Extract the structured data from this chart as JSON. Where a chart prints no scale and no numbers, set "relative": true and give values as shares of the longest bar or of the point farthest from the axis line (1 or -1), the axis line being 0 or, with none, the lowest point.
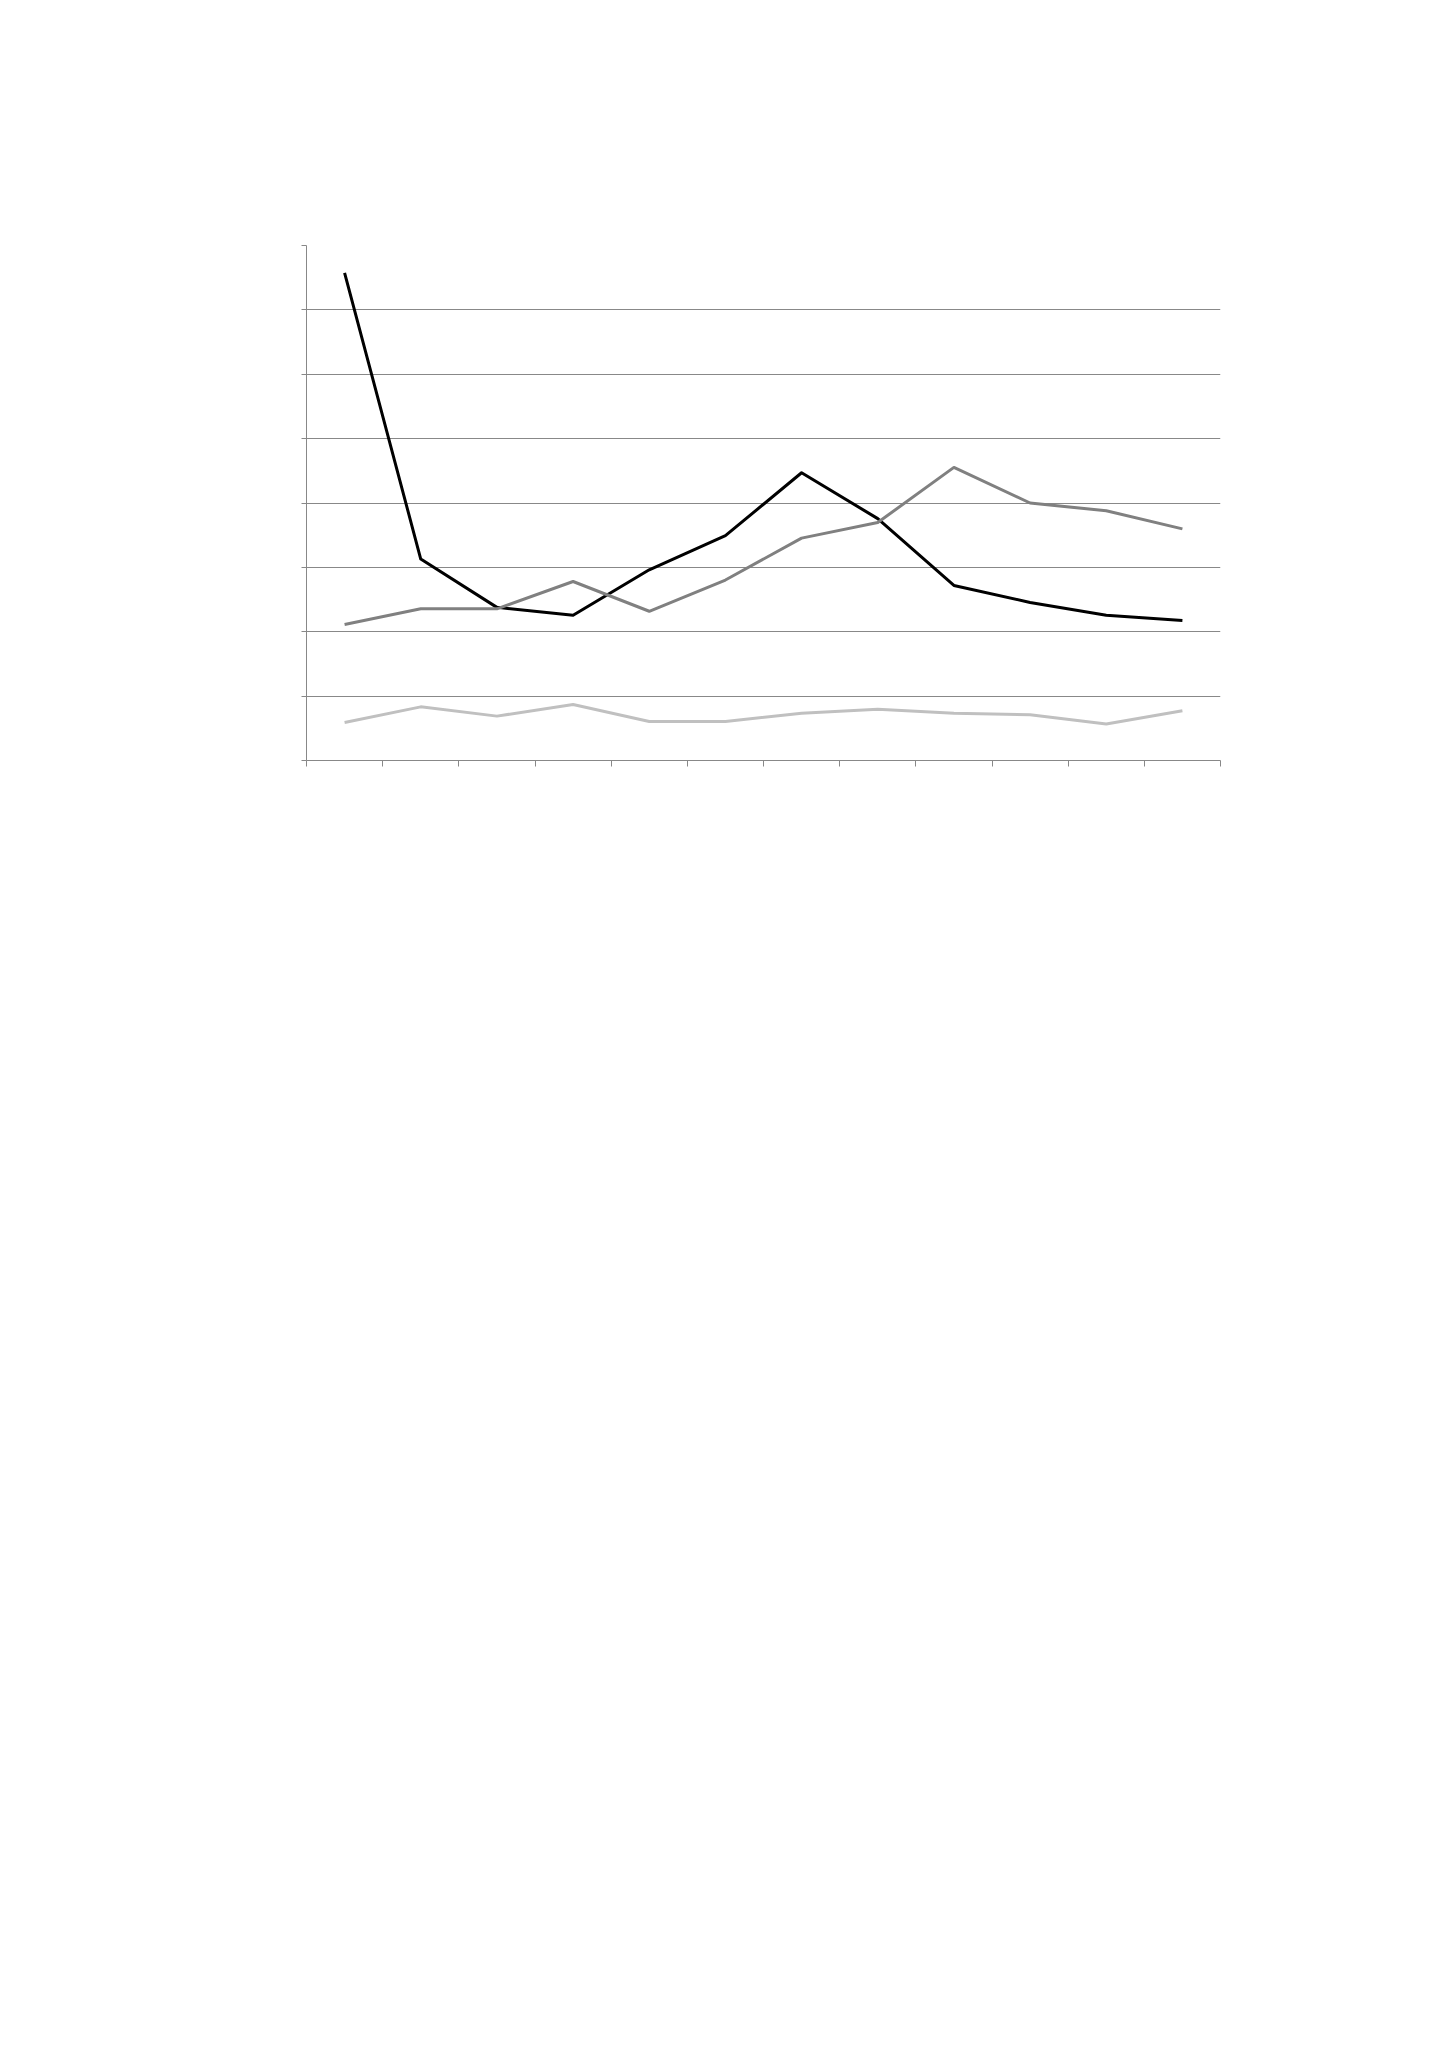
{
  "chart_data": {
    "type": "line",
    "relative": true,
    "grid": "y",
    "categories": [
      null,
      null,
      null,
      null,
      null,
      null,
      null,
      null,
      null,
      null,
      null,
      null
    ],
    "series": [
      {
        "color": "#000000",
        "values": [
          1.0,
          0.413,
          0.314,
          0.298,
          0.391,
          0.461,
          0.59,
          0.496,
          0.359,
          0.324,
          0.298,
          0.287
        ]
      },
      {
        "color": "#c0c0c0",
        "values": [
          0.078,
          0.11,
          0.091,
          0.115,
          0.08,
          0.08,
          0.097,
          0.105,
          0.097,
          0.094,
          0.075,
          0.102
        ]
      },
      {
        "color": "#808080",
        "values": [
          0.279,
          0.311,
          0.311,
          0.367,
          0.306,
          0.37,
          0.456,
          0.488,
          0.601,
          0.528,
          0.512,
          0.475
        ]
      }
    ]
  }
}
